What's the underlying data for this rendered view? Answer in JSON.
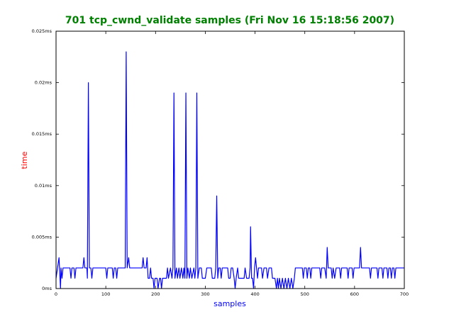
{
  "chart_data": {
    "type": "line",
    "title": "701 tcp_cwnd_validate samples (Fri Nov 16 15:18:56 2007)",
    "x_label": "samples",
    "y_label": "time",
    "xlim": [
      0,
      700
    ],
    "xticks": [
      0,
      100,
      200,
      300,
      400,
      500,
      600,
      700
    ],
    "ylim": [
      0,
      0.025
    ],
    "yticks": [
      {
        "value": 0,
        "label": "0ms"
      },
      {
        "value": 0.005,
        "label": "0.005ms"
      },
      {
        "value": 0.01,
        "label": "0.01ms"
      },
      {
        "value": 0.015,
        "label": "0.015ms"
      },
      {
        "value": 0.02,
        "label": "0.02ms"
      },
      {
        "value": 0.025,
        "label": "0.025ms"
      }
    ],
    "grid": false,
    "x": [
      0,
      3,
      6,
      8,
      9,
      10,
      12,
      14,
      28,
      30,
      32,
      36,
      38,
      40,
      54,
      56,
      58,
      62,
      63,
      65,
      67,
      70,
      72,
      74,
      100,
      102,
      104,
      113,
      115,
      117,
      120,
      122,
      124,
      139,
      141,
      143,
      146,
      148,
      173,
      175,
      177,
      181,
      183,
      185,
      188,
      190,
      192,
      195,
      197,
      199,
      203,
      205,
      208,
      210,
      212,
      214,
      222,
      224,
      226,
      230,
      233,
      235,
      237,
      239,
      242,
      244,
      247,
      249,
      252,
      255,
      257,
      259,
      261,
      263,
      265,
      268,
      270,
      273,
      277,
      279,
      281,
      283,
      285,
      288,
      292,
      294,
      300,
      303,
      312,
      314,
      319,
      321,
      323,
      325,
      327,
      330,
      332,
      334,
      345,
      347,
      350,
      352,
      355,
      358,
      360,
      362,
      365,
      367,
      378,
      380,
      383,
      388,
      390,
      391,
      393,
      395,
      397,
      399,
      401,
      403,
      405,
      407,
      413,
      415,
      418,
      423,
      425,
      428,
      433,
      435,
      440,
      443,
      445,
      447,
      449,
      452,
      455,
      458,
      461,
      464,
      467,
      470,
      473,
      476,
      479,
      481,
      495,
      497,
      499,
      503,
      505,
      507,
      510,
      512,
      514,
      530,
      532,
      534,
      540,
      543,
      545,
      547,
      553,
      555,
      557,
      560,
      563,
      570,
      572,
      574,
      585,
      587,
      589,
      595,
      597,
      599,
      610,
      612,
      614,
      630,
      632,
      634,
      645,
      647,
      649,
      655,
      657,
      659,
      665,
      667,
      669,
      672,
      674,
      676,
      679,
      681,
      683,
      700
    ],
    "series": [
      {
        "name": "time",
        "color": "#0000ff",
        "values": [
          0.001,
          0.002,
          0.003,
          0.001,
          0,
          0.002,
          0.001,
          0.002,
          0.002,
          0.001,
          0.002,
          0.002,
          0.001,
          0.002,
          0.002,
          0.003,
          0.002,
          0.002,
          0.001,
          0.02,
          0.002,
          0.002,
          0.001,
          0.002,
          0.002,
          0.001,
          0.002,
          0.002,
          0.001,
          0.002,
          0.002,
          0.001,
          0.002,
          0.002,
          0.023,
          0.002,
          0.003,
          0.002,
          0.002,
          0.003,
          0.002,
          0.002,
          0.003,
          0.001,
          0.001,
          0.002,
          0.001,
          0.001,
          0,
          0.001,
          0.001,
          0,
          0.001,
          0.001,
          0,
          0.001,
          0.001,
          0.002,
          0.001,
          0.002,
          0.001,
          0.002,
          0.019,
          0.001,
          0.002,
          0.001,
          0.002,
          0.001,
          0.002,
          0.001,
          0.002,
          0.001,
          0.019,
          0.001,
          0.002,
          0.001,
          0.002,
          0.001,
          0.002,
          0.001,
          0.002,
          0.019,
          0.001,
          0.002,
          0.002,
          0.001,
          0.001,
          0.002,
          0.002,
          0.001,
          0.001,
          0.002,
          0.009,
          0.001,
          0.002,
          0.002,
          0.001,
          0.002,
          0.002,
          0.001,
          0.001,
          0.002,
          0.002,
          0.001,
          0,
          0.001,
          0.002,
          0.001,
          0.001,
          0.002,
          0.001,
          0.001,
          0.002,
          0.006,
          0.001,
          0.001,
          0,
          0.002,
          0.003,
          0.002,
          0.001,
          0.002,
          0.002,
          0.001,
          0.002,
          0.002,
          0.001,
          0.002,
          0.002,
          0.001,
          0.001,
          0,
          0.001,
          0,
          0.001,
          0,
          0.001,
          0,
          0.001,
          0,
          0.001,
          0,
          0.001,
          0,
          0.001,
          0.002,
          0.002,
          0.001,
          0.002,
          0.002,
          0.001,
          0.002,
          0.002,
          0.001,
          0.002,
          0.002,
          0.001,
          0.002,
          0.002,
          0.001,
          0.004,
          0.002,
          0.002,
          0.001,
          0.002,
          0.001,
          0.002,
          0.002,
          0.001,
          0.002,
          0.002,
          0.001,
          0.002,
          0.002,
          0.001,
          0.002,
          0.002,
          0.004,
          0.002,
          0.002,
          0.001,
          0.002,
          0.002,
          0.001,
          0.002,
          0.002,
          0.001,
          0.002,
          0.002,
          0.001,
          0.002,
          0.002,
          0.001,
          0.002,
          0.002,
          0.001,
          0.002,
          0.002
        ]
      }
    ]
  }
}
